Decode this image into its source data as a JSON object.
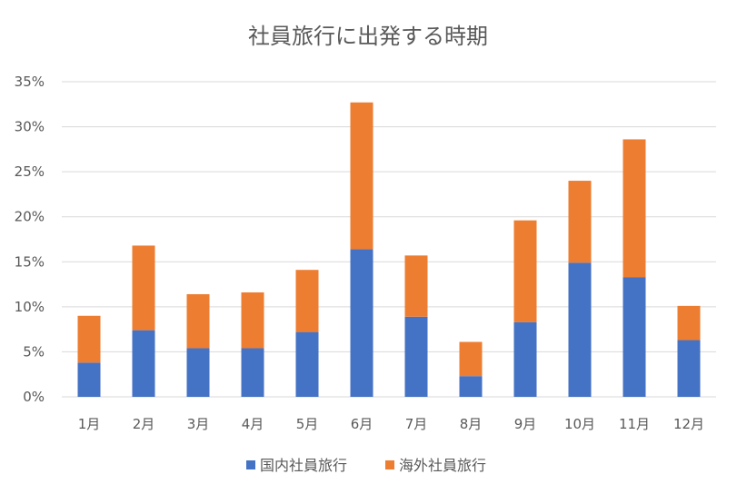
{
  "chart_data": {
    "type": "bar",
    "stacked": true,
    "title": "社員旅行に出発する時期",
    "categories": [
      "1月",
      "2月",
      "3月",
      "4月",
      "5月",
      "6月",
      "7月",
      "8月",
      "9月",
      "10月",
      "11月",
      "12月"
    ],
    "series": [
      {
        "name": "国内社員旅行",
        "color": "#4472c4",
        "values": [
          3.8,
          7.4,
          5.4,
          5.4,
          7.2,
          16.4,
          8.9,
          2.3,
          8.3,
          14.9,
          13.3,
          6.3
        ]
      },
      {
        "name": "海外社員旅行",
        "color": "#ed7d31",
        "values": [
          5.2,
          9.4,
          6.0,
          6.2,
          6.9,
          16.3,
          6.8,
          3.8,
          11.3,
          9.1,
          15.3,
          3.8
        ]
      }
    ],
    "y_ticks": [
      "0%",
      "5%",
      "10%",
      "15%",
      "20%",
      "25%",
      "30%",
      "35%"
    ],
    "ylim": [
      0,
      35
    ],
    "grid": true,
    "legend_position": "bottom"
  }
}
